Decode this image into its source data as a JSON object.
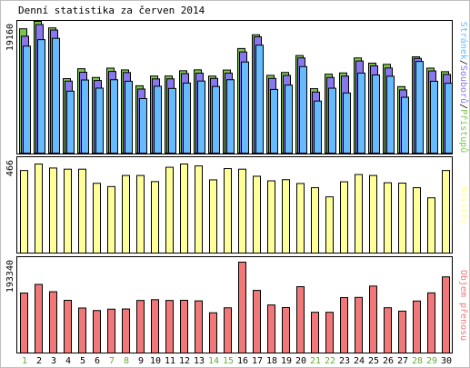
{
  "chart_data": {
    "title": "Denní statistika za červen 2014",
    "type": "bar",
    "categories": [
      "1",
      "2",
      "3",
      "4",
      "5",
      "6",
      "7",
      "8",
      "9",
      "10",
      "11",
      "12",
      "13",
      "14",
      "15",
      "16",
      "17",
      "18",
      "19",
      "20",
      "21",
      "22",
      "23",
      "24",
      "25",
      "26",
      "27",
      "28",
      "29",
      "30"
    ],
    "weekend_days": [
      "1",
      "7",
      "8",
      "14",
      "15",
      "21",
      "22",
      "28",
      "29"
    ],
    "panels": [
      {
        "kind": "grouped-bar",
        "ymax_label": "19160",
        "ylim": [
          0,
          19160
        ],
        "label_parts": [
          "Stránek",
          "/",
          "Souborů",
          "/",
          "Přístupů"
        ],
        "series": [
          {
            "name": "Přístupů",
            "color": "#7cc44c",
            "values": [
              18080,
              19160,
              18210,
              10830,
              12270,
              11000,
              12360,
              12100,
              9790,
              11210,
              11210,
              11980,
              12110,
              11200,
              12080,
              15210,
              17210,
              11310,
              11730,
              14190,
              9370,
              11480,
              11660,
              13840,
              13080,
              12910,
              9670,
              14000,
              12360,
              11840
            ]
          },
          {
            "name": "Souborů",
            "color": "#8877ee",
            "values": [
              17000,
              18700,
              17900,
              10470,
              11760,
              10560,
              11880,
              11720,
              9320,
              10790,
              10800,
              11560,
              11630,
              10860,
              11640,
              14710,
              16910,
              10860,
              11300,
              13840,
              8880,
              11000,
              11200,
              13400,
              12700,
              12380,
              9190,
              13770,
              11950,
              11440
            ]
          },
          {
            "name": "Stránek",
            "color": "#66bbff",
            "values": [
              15560,
              16500,
              16690,
              9010,
              10630,
              9450,
              10670,
              10450,
              7930,
              9720,
              9400,
              10190,
              10480,
              9690,
              10670,
              13250,
              15700,
              9260,
              9890,
              12580,
              7570,
              9440,
              8750,
              11640,
              11360,
              11180,
              8120,
              13330,
              10450,
              10160
            ]
          }
        ]
      },
      {
        "kind": "bar",
        "ymax_label": "466",
        "ylim": [
          0,
          466
        ],
        "label": "Návštěv",
        "color": "#ffff99",
        "series": [
          {
            "name": "Návštěv",
            "values": [
              432,
              466,
              445,
              439,
              439,
              365,
              348,
              406,
              406,
              374,
              449,
              466,
              456,
              383,
              442,
              439,
              402,
              378,
              384,
              364,
              342,
              294,
              373,
              411,
              406,
              368,
              366,
              342,
              289,
              432
            ]
          }
        ]
      },
      {
        "kind": "bar",
        "ymax_label": "193340",
        "ylim": [
          0,
          193340
        ],
        "label": "Objem přenosu",
        "color": "#f07878",
        "series": [
          {
            "name": "Objem přenosu",
            "values": [
              127560,
              145990,
              130410,
              112140,
              95740,
              90400,
              93290,
              93720,
              111820,
              113460,
              111820,
              112180,
              110920,
              85660,
              96160,
              193340,
              133260,
              102210,
              96720,
              141090,
              86660,
              86660,
              117890,
              118330,
              142460,
              96320,
              89140,
              110660,
              128000,
              162010
            ]
          }
        ]
      }
    ]
  }
}
